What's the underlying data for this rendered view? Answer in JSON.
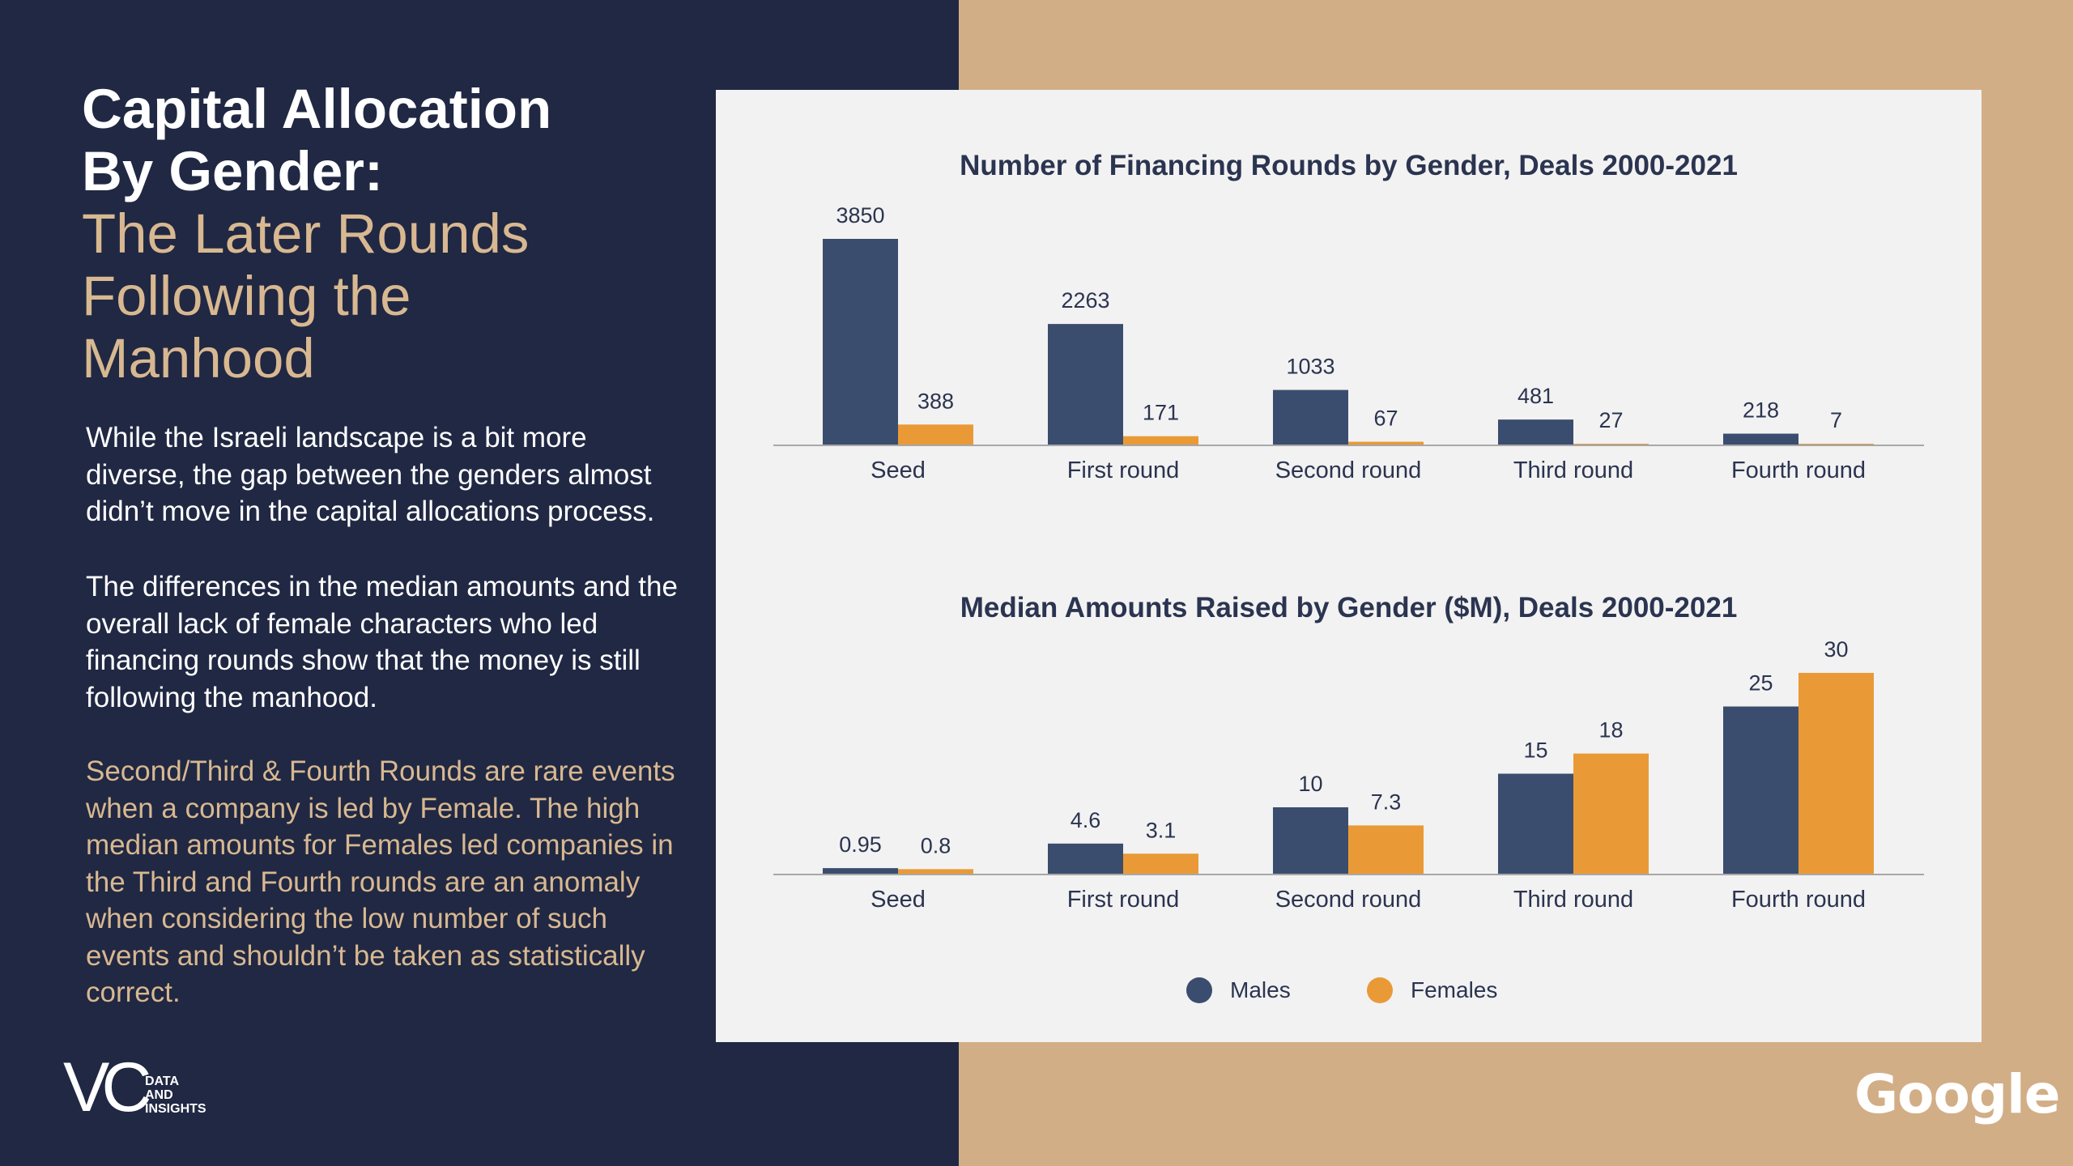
{
  "heading": {
    "line1": "Capital Allocation",
    "line2": "By Gender:",
    "line3": "The Later Rounds",
    "line4": "Following the",
    "line5": "Manhood"
  },
  "paragraphs": {
    "p1": "While the Israeli landscape is a bit more diverse, the gap between the genders almost didn’t move in the capital allocations process.",
    "p2": "The differences in the median amounts and the overall lack of female characters who led financing rounds show that the money is still following the manhood.",
    "p3": "Second/Third & Fourth Rounds are rare events when a company is led by Female. The high median amounts for Females led companies in the Third and Fourth rounds are an anomaly when considering the low number of such events and shouldn’t be taken as statistically correct."
  },
  "logo": {
    "vc_text": "VC",
    "tagline_1": "DATA",
    "tagline_2": "AND",
    "tagline_3": "INSIGHTS"
  },
  "google_logo": "Google",
  "colors": {
    "males": "#3b4d6e",
    "females": "#e99a36",
    "navy_panel": "#202843",
    "tan_panel": "#d2ae87"
  },
  "legend": {
    "males": "Males",
    "females": "Females"
  },
  "chart_data": [
    {
      "type": "bar",
      "title": "Number of Financing Rounds by Gender, Deals 2000-2021",
      "categories": [
        "Seed",
        "First round",
        "Second round",
        "Third round",
        "Fourth round"
      ],
      "series": [
        {
          "name": "Males",
          "values": [
            3850,
            2263,
            1033,
            481,
            218
          ],
          "labels": [
            "3850",
            "2263",
            "1033",
            "481",
            "218"
          ]
        },
        {
          "name": "Females",
          "values": [
            388,
            171,
            67,
            27,
            7
          ],
          "labels": [
            "388",
            "171",
            "67",
            "27",
            "7"
          ]
        }
      ],
      "ylim": [
        0,
        3850
      ],
      "legend": "bottom",
      "grid": false
    },
    {
      "type": "bar",
      "title": "Median Amounts Raised by Gender ($M), Deals 2000-2021",
      "categories": [
        "Seed",
        "First round",
        "Second round",
        "Third round",
        "Fourth round"
      ],
      "series": [
        {
          "name": "Males",
          "values": [
            0.95,
            4.6,
            10,
            15,
            25
          ],
          "labels": [
            "0.95",
            "4.6",
            "10",
            "15",
            "25"
          ]
        },
        {
          "name": "Females",
          "values": [
            0.8,
            3.1,
            7.3,
            18,
            30
          ],
          "labels": [
            "0.8",
            "3.1",
            "7.3",
            "18",
            "30"
          ]
        }
      ],
      "ylim": [
        0,
        30
      ],
      "legend": "bottom",
      "grid": false
    }
  ]
}
